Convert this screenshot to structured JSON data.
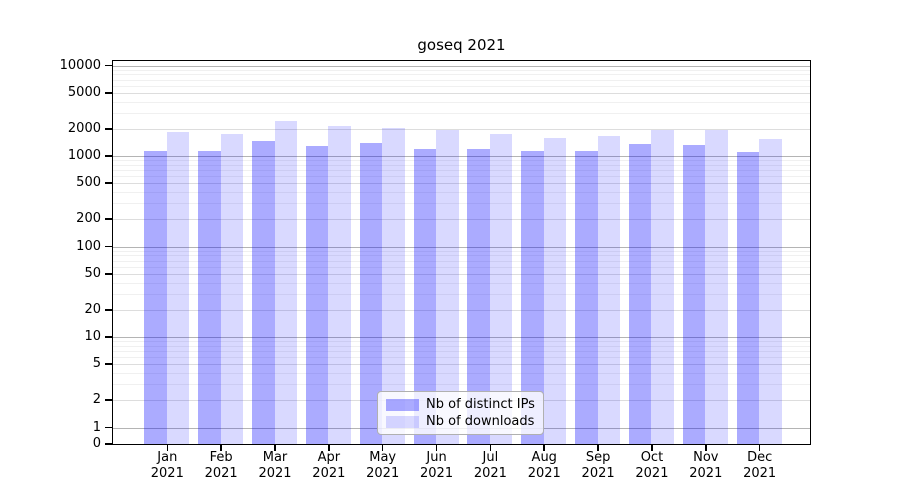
{
  "chart_data": {
    "type": "bar",
    "title": "goseq 2021",
    "x_tick_labels": [
      [
        "Jan",
        "2021"
      ],
      [
        "Feb",
        "2021"
      ],
      [
        "Mar",
        "2021"
      ],
      [
        "Apr",
        "2021"
      ],
      [
        "May",
        "2021"
      ],
      [
        "Jun",
        "2021"
      ],
      [
        "Jul",
        "2021"
      ],
      [
        "Aug",
        "2021"
      ],
      [
        "Sep",
        "2021"
      ],
      [
        "Oct",
        "2021"
      ],
      [
        "Nov",
        "2021"
      ],
      [
        "Dec",
        "2021"
      ]
    ],
    "series": [
      {
        "name": "Nb of distinct IPs",
        "color": "rgba(0,0,255,0.33)",
        "values": [
          1150,
          1130,
          1460,
          1290,
          1390,
          1200,
          1210,
          1130,
          1130,
          1340,
          1310,
          1110
        ]
      },
      {
        "name": "Nb of downloads",
        "color": "rgba(0,0,255,0.15)",
        "values": [
          1840,
          1750,
          2450,
          2130,
          2060,
          1940,
          1770,
          1570,
          1680,
          1940,
          1950,
          1550
        ]
      }
    ],
    "y_ticks": [
      10000,
      5000,
      2000,
      1000,
      500,
      200,
      100,
      50,
      20,
      10,
      5,
      2,
      1,
      0
    ],
    "y_scale": "symlog",
    "ylim": [
      0,
      11700
    ],
    "grid": true,
    "legend_position": "bottom-center",
    "axis_color": "#000000",
    "grid_major_color": "#b4b4b4",
    "grid_minor_color": "#f0f0f0"
  }
}
